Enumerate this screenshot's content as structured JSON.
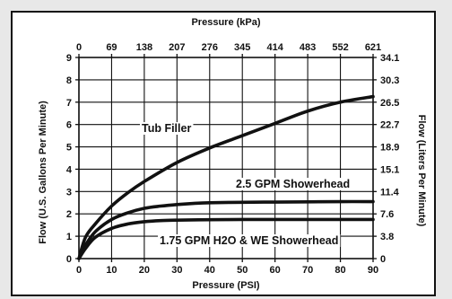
{
  "chart_data": {
    "type": "line",
    "x_bottom": {
      "label": "Pressure (PSI)",
      "range": [
        0,
        90
      ],
      "ticks": [
        0,
        10,
        20,
        30,
        40,
        50,
        60,
        70,
        80,
        90
      ]
    },
    "x_top": {
      "label": "Pressure (kPa)",
      "ticks": [
        "0",
        "69",
        "138",
        "207",
        "276",
        "345",
        "414",
        "483",
        "552",
        "621"
      ]
    },
    "y_left": {
      "label": "Flow (U.S. Gallons Per Minute)",
      "range": [
        0,
        9
      ],
      "ticks": [
        0,
        1,
        2,
        3,
        4,
        5,
        6,
        7,
        8,
        9
      ]
    },
    "y_right": {
      "label": "Flow (Liters Per Minute)",
      "ticks": [
        "0",
        "3.8",
        "7.6",
        "11.4",
        "15.1",
        "18.9",
        "22.7",
        "26.5",
        "30.3",
        "34.1"
      ]
    },
    "grid": true,
    "series": [
      {
        "name": "Tub Filler",
        "x": [
          0,
          2,
          5,
          10,
          15,
          20,
          30,
          40,
          50,
          60,
          70,
          80,
          90
        ],
        "y": [
          0,
          0.95,
          1.55,
          2.35,
          2.95,
          3.45,
          4.3,
          4.95,
          5.5,
          6.05,
          6.6,
          7.0,
          7.25
        ]
      },
      {
        "name": "2.5 GPM Showerhead",
        "x": [
          0,
          2,
          5,
          10,
          15,
          20,
          25,
          30,
          35,
          40,
          50,
          60,
          70,
          80,
          90
        ],
        "y": [
          0,
          0.6,
          1.2,
          1.75,
          2.05,
          2.25,
          2.35,
          2.42,
          2.47,
          2.5,
          2.52,
          2.53,
          2.54,
          2.55,
          2.55
        ]
      },
      {
        "name": "1.75 GPM H2O & WE Showerhead",
        "x": [
          0,
          2,
          5,
          10,
          15,
          20,
          25,
          30,
          40,
          50,
          60,
          70,
          80,
          90
        ],
        "y": [
          0,
          0.45,
          0.95,
          1.35,
          1.55,
          1.65,
          1.7,
          1.72,
          1.74,
          1.75,
          1.75,
          1.75,
          1.75,
          1.75
        ]
      }
    ],
    "annotations": {
      "tub_filler": "Tub Filler",
      "showerhead_25": "2.5 GPM Showerhead",
      "showerhead_175": "1.75 GPM H2O & WE Showerhead"
    },
    "line_color": "#111111",
    "grid_color": "#111111"
  }
}
